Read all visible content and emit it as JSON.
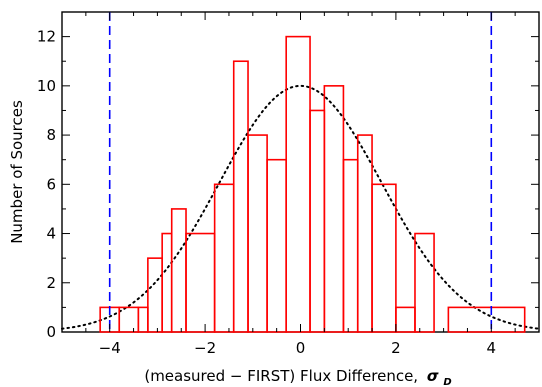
{
  "chart_data": {
    "type": "histogram",
    "xlabel": "(measured − FIRST) Flux Difference,",
    "xlabel_symbol": "σ",
    "xlabel_symbol_sub": "D",
    "ylabel": "Number of Sources",
    "xlim": [
      -5,
      5
    ],
    "ylim": [
      0,
      13
    ],
    "xticks": [
      -4,
      -2,
      0,
      2,
      4
    ],
    "xtick_labels": [
      "−4",
      "−2",
      "0",
      "2",
      "4"
    ],
    "yticks": [
      0,
      2,
      4,
      6,
      8,
      10,
      12
    ],
    "ytick_labels": [
      "0",
      "2",
      "4",
      "6",
      "8",
      "10",
      "12"
    ],
    "bins": [
      {
        "x0": -4.2,
        "x1": -3.8,
        "count": 1
      },
      {
        "x0": -3.8,
        "x1": -3.4,
        "count": 1
      },
      {
        "x0": -3.4,
        "x1": -3.2,
        "count": 1
      },
      {
        "x0": -3.2,
        "x1": -2.9,
        "count": 3
      },
      {
        "x0": -2.9,
        "x1": -2.7,
        "count": 4
      },
      {
        "x0": -2.7,
        "x1": -2.4,
        "count": 5
      },
      {
        "x0": -2.4,
        "x1": -1.8,
        "count": 4
      },
      {
        "x0": -1.8,
        "x1": -1.4,
        "count": 6
      },
      {
        "x0": -1.4,
        "x1": -1.1,
        "count": 11
      },
      {
        "x0": -1.1,
        "x1": -0.7,
        "count": 8
      },
      {
        "x0": -0.7,
        "x1": -0.3,
        "count": 7
      },
      {
        "x0": -0.3,
        "x1": 0.2,
        "count": 12
      },
      {
        "x0": 0.2,
        "x1": 0.5,
        "count": 9
      },
      {
        "x0": 0.5,
        "x1": 0.9,
        "count": 10
      },
      {
        "x0": 0.9,
        "x1": 1.2,
        "count": 7
      },
      {
        "x0": 1.2,
        "x1": 1.5,
        "count": 8
      },
      {
        "x0": 1.5,
        "x1": 2.0,
        "count": 6
      },
      {
        "x0": 2.0,
        "x1": 2.4,
        "count": 1
      },
      {
        "x0": 2.4,
        "x1": 2.8,
        "count": 4
      },
      {
        "x0": 2.8,
        "x1": 3.1,
        "count": 0
      },
      {
        "x0": 3.1,
        "x1": 4.7,
        "count": 1
      }
    ],
    "gaussian": {
      "peak": 10,
      "mean": 0,
      "sigma": 1.7
    },
    "cut_lines": [
      -4,
      4
    ],
    "colors": {
      "histogram": "#ff0000",
      "gaussian": "#000000",
      "cut_lines": "#0000ff",
      "axes": "#000000"
    },
    "grid": false
  }
}
